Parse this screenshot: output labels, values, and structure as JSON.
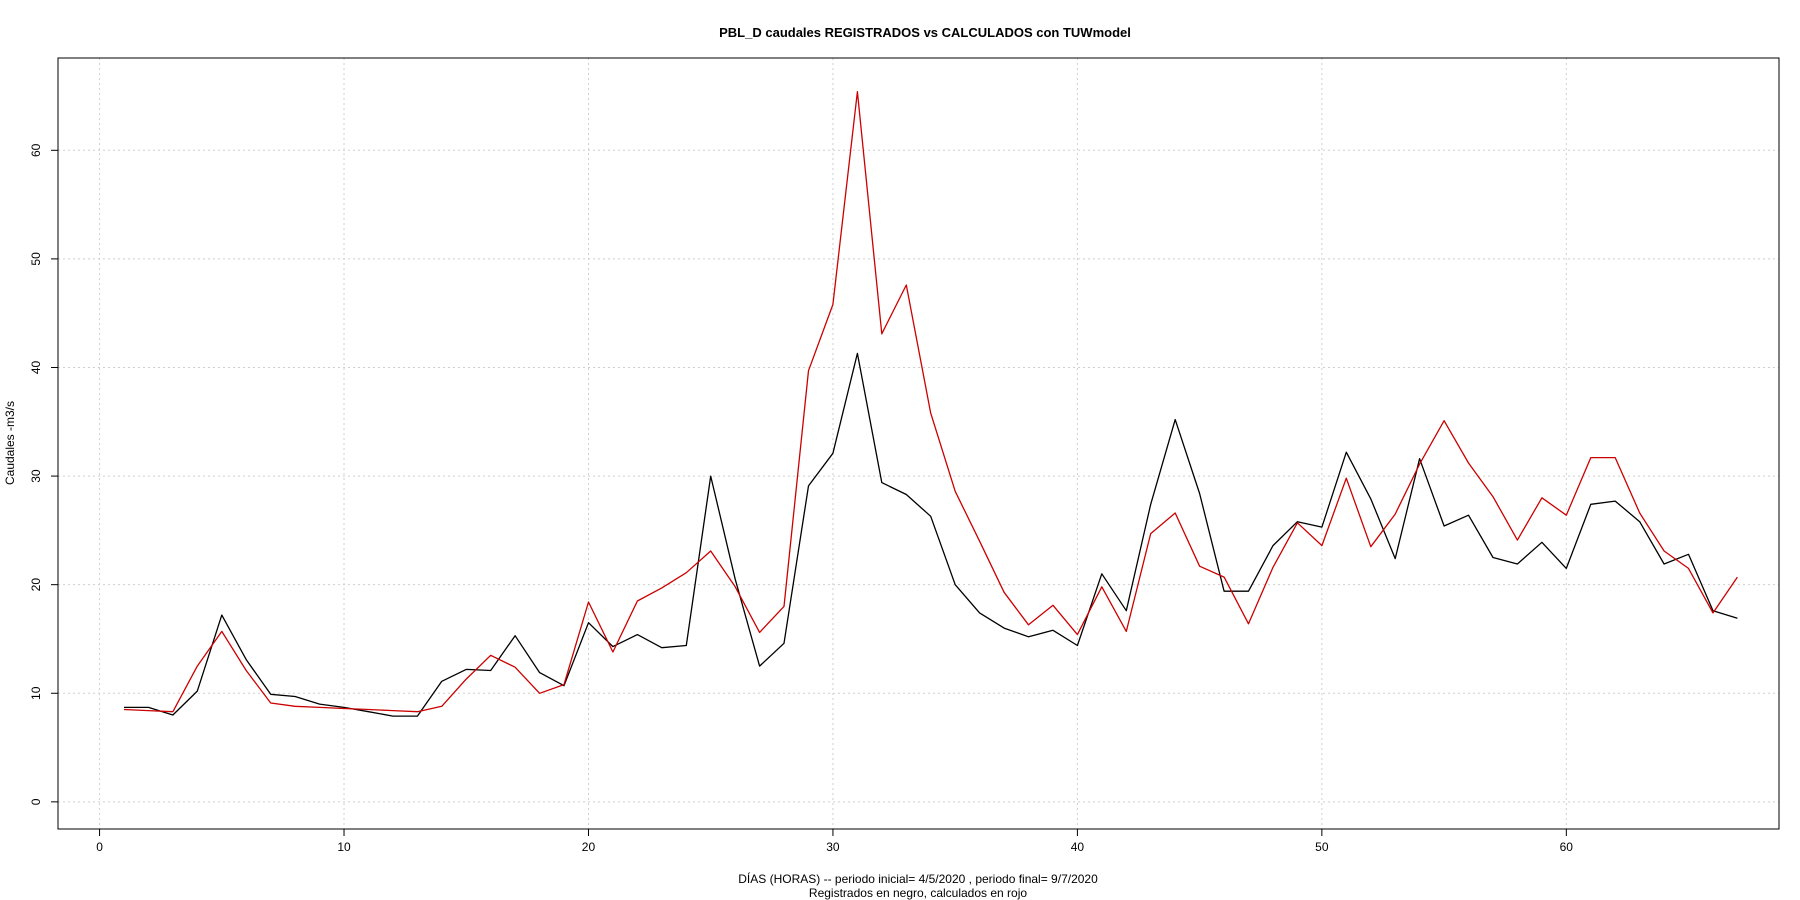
{
  "chart_data": {
    "type": "line",
    "title": "PBL_D caudales REGISTRADOS vs CALCULADOS con TUWmodel",
    "xlabel": "DÍAS (HORAS) --  periodo inicial= 4/5/2020 ,  periodo final= 9/7/2020",
    "xlabel2": "Registrados en negro, calculados en rojo",
    "ylabel": "Caudales -m3/s",
    "xlim": [
      -1.7,
      68.7
    ],
    "ylim": [
      -2.5,
      68.5
    ],
    "xticks": [
      0,
      10,
      20,
      30,
      40,
      50,
      60
    ],
    "yticks": [
      0,
      10,
      20,
      30,
      40,
      50,
      60
    ],
    "grid": true,
    "x": [
      1,
      2,
      3,
      4,
      5,
      6,
      7,
      8,
      9,
      10,
      11,
      12,
      13,
      14,
      15,
      16,
      17,
      18,
      19,
      20,
      21,
      22,
      23,
      24,
      25,
      26,
      27,
      28,
      29,
      30,
      31,
      32,
      33,
      34,
      35,
      36,
      37,
      38,
      39,
      40,
      41,
      42,
      43,
      44,
      45,
      46,
      47,
      48,
      49,
      50,
      51,
      52,
      53,
      54,
      55,
      56,
      57,
      58,
      59,
      60,
      61,
      62,
      63,
      64,
      65,
      66,
      67
    ],
    "series": [
      {
        "color": "#000000",
        "values": [
          8.7,
          8.7,
          8.0,
          10.2,
          17.2,
          13.1,
          9.9,
          9.7,
          9.0,
          8.7,
          8.3,
          7.9,
          7.9,
          11.1,
          12.2,
          12.1,
          15.3,
          11.9,
          10.7,
          16.5,
          14.3,
          15.4,
          14.2,
          14.4,
          30.0,
          20.5,
          12.5,
          14.6,
          29.1,
          32.1,
          41.3,
          29.4,
          28.3,
          26.3,
          20.0,
          17.4,
          16.0,
          15.2,
          15.8,
          14.4,
          21.0,
          17.6,
          27.4,
          35.2,
          28.4,
          19.4,
          19.4,
          23.6,
          25.8,
          25.3,
          32.2,
          27.9,
          22.4,
          31.6,
          25.4,
          26.4,
          22.5,
          21.9,
          23.9,
          21.5,
          27.4,
          27.7,
          25.8,
          21.9,
          22.8,
          17.6,
          16.9
        ]
      },
      {
        "color": "#cc0000",
        "values": [
          8.5,
          8.4,
          8.3,
          12.5,
          15.7,
          12.1,
          9.1,
          8.8,
          8.7,
          8.6,
          8.5,
          8.4,
          8.3,
          8.8,
          11.3,
          13.5,
          12.4,
          10.0,
          10.8,
          18.4,
          13.8,
          18.5,
          19.7,
          21.1,
          23.1,
          19.8,
          15.6,
          18.0,
          39.7,
          45.8,
          65.4,
          43.1,
          47.6,
          35.8,
          28.6,
          24.0,
          19.3,
          16.3,
          18.1,
          15.4,
          19.8,
          15.7,
          24.7,
          26.6,
          21.7,
          20.7,
          16.4,
          21.6,
          25.7,
          23.6,
          29.8,
          23.5,
          26.5,
          31.1,
          35.1,
          31.2,
          28.1,
          24.1,
          28.0,
          26.4,
          31.7,
          31.7,
          26.6,
          23.1,
          21.5,
          17.4,
          20.7
        ]
      }
    ]
  }
}
